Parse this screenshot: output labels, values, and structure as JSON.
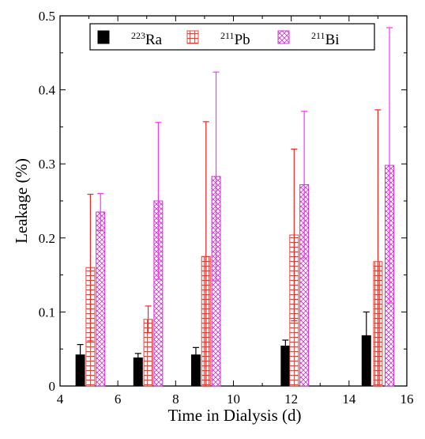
{
  "chart_data": {
    "type": "bar",
    "title": "",
    "xlabel": "Time in Dialysis (d)",
    "ylabel": "Leakage (%)",
    "xlim": [
      4,
      16
    ],
    "ylim": [
      0,
      0.5
    ],
    "xticks": [
      "4",
      "6",
      "8",
      "10",
      "12",
      "14",
      "16"
    ],
    "yticks": [
      "0",
      "0.1",
      "0.2",
      "0.3",
      "0.4",
      "0.5"
    ],
    "grid": false,
    "legend_position": "top",
    "bar_width_days": 0.3,
    "series": [
      {
        "key": "ra",
        "mass": "223",
        "element": "Ra",
        "fill": "solid",
        "color": "#000000",
        "error_color": "#000000",
        "x": [
          4.7,
          6.7,
          8.7,
          11.8,
          14.6
        ],
        "values": [
          0.042,
          0.038,
          0.042,
          0.054,
          0.068
        ],
        "errors": [
          0.014,
          0.006,
          0.01,
          0.008,
          0.032
        ]
      },
      {
        "key": "pb",
        "mass": "211",
        "element": "Pb",
        "fill": "grid-hatch",
        "color": "#e0443a",
        "error_color": "#ff2020",
        "x": [
          5.05,
          7.05,
          9.05,
          12.1,
          15.0
        ],
        "values": [
          0.16,
          0.09,
          0.175,
          0.204,
          0.168
        ],
        "errors": [
          0.099,
          0.018,
          0.182,
          0.116,
          0.205
        ]
      },
      {
        "key": "bi",
        "mass": "211",
        "element": "Bi",
        "fill": "cross-hatch",
        "color": "#d030d0",
        "error_color": "#ff30ff",
        "x": [
          5.4,
          7.4,
          9.4,
          12.45,
          15.4
        ],
        "values": [
          0.235,
          0.25,
          0.283,
          0.272,
          0.298
        ],
        "errors": [
          0.025,
          0.106,
          0.141,
          0.099,
          0.186
        ]
      }
    ]
  }
}
